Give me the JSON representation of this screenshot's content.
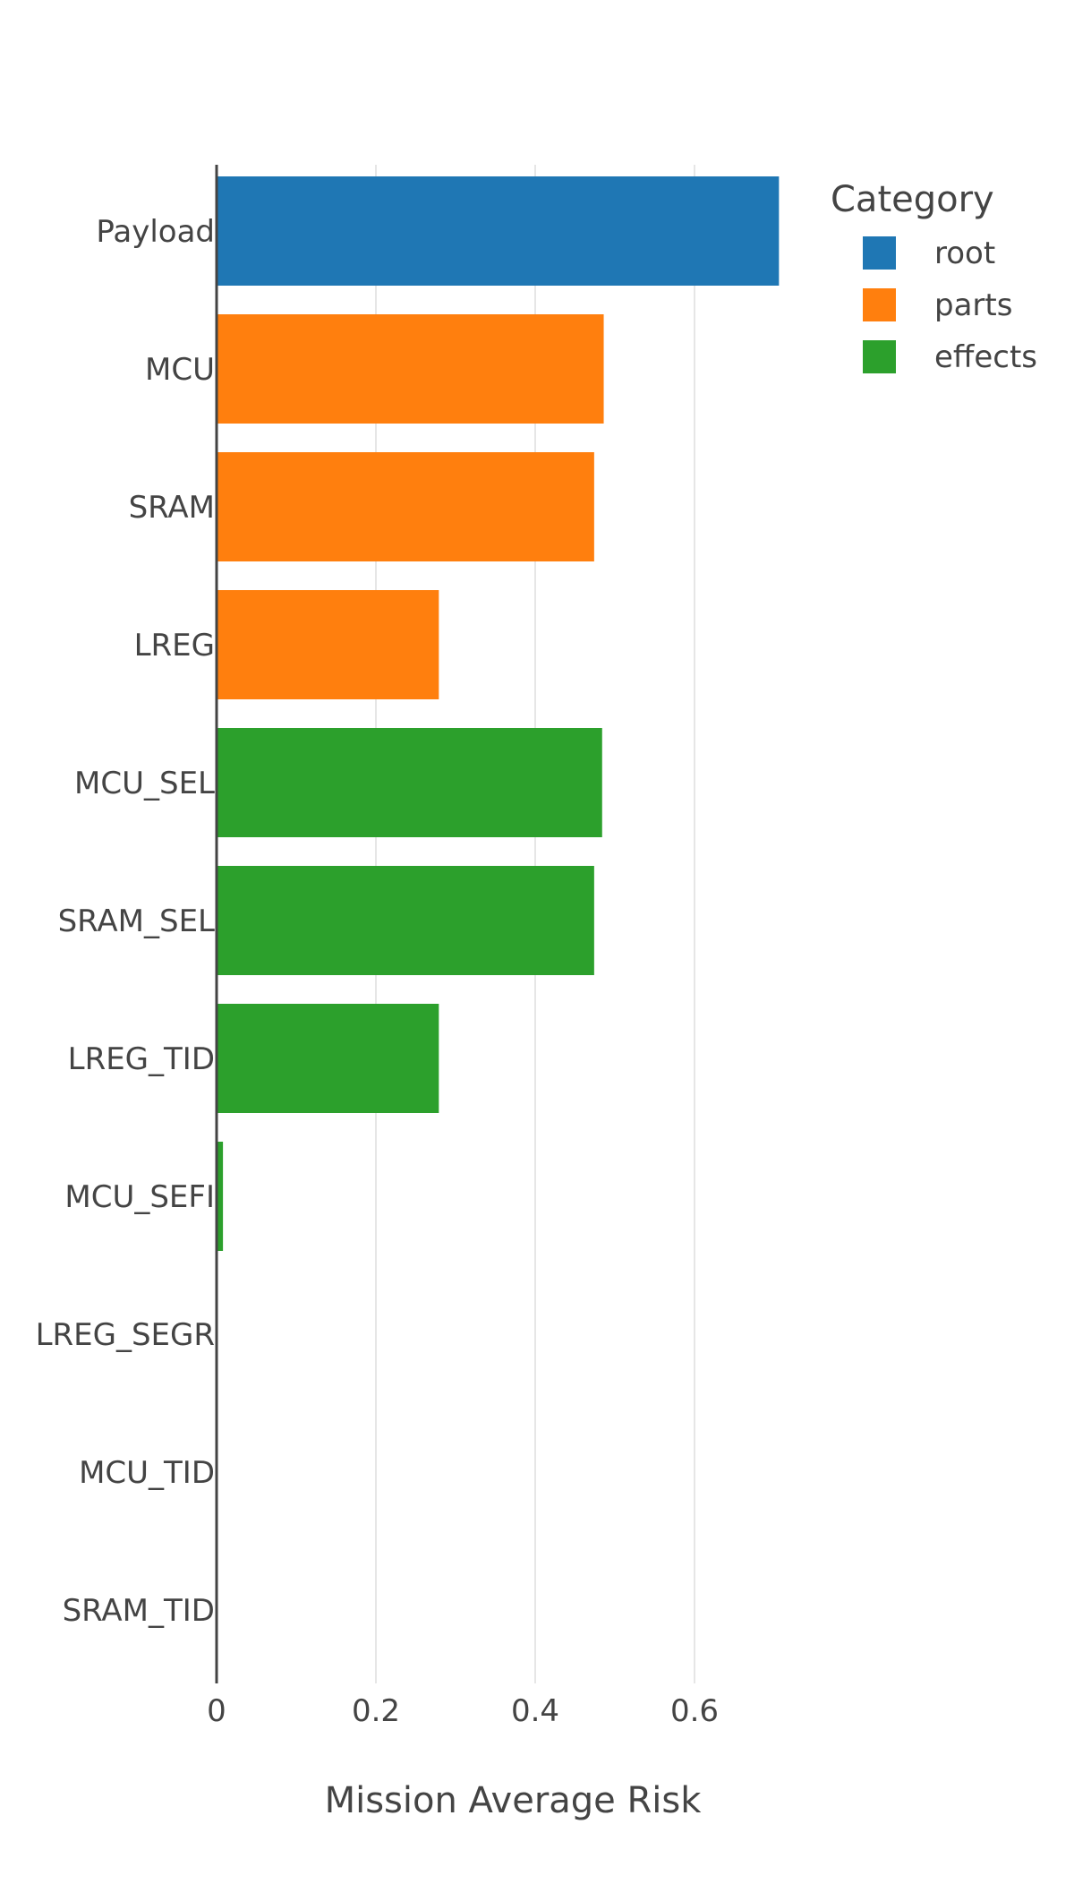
{
  "chart_data": {
    "type": "bar",
    "orientation": "horizontal",
    "title": "",
    "xlabel": "Mission Average Risk",
    "ylabel": "",
    "xlim": [
      0,
      0.72
    ],
    "x_ticks": [
      0,
      0.2,
      0.4,
      0.6
    ],
    "x_tick_labels": [
      "0",
      "0.2",
      "0.4",
      "0.6"
    ],
    "grid": "vertical gridlines on",
    "legend": {
      "title": "Category",
      "placement": "top-right",
      "items": [
        {
          "label": "root",
          "color": "#1f77b4"
        },
        {
          "label": "parts",
          "color": "#ff7f0e"
        },
        {
          "label": "effects",
          "color": "#2ca02c"
        }
      ]
    },
    "categories": [
      "Payload",
      "MCU",
      "SRAM",
      "LREG",
      "MCU_SEL",
      "SRAM_SEL",
      "LREG_TID",
      "MCU_SEFI",
      "LREG_SEGR",
      "MCU_TID",
      "SRAM_TID"
    ],
    "values": [
      0.706,
      0.486,
      0.474,
      0.279,
      0.484,
      0.474,
      0.279,
      0.008,
      0.0015,
      0.0005,
      0.0003
    ],
    "bar_categories": [
      "root",
      "parts",
      "parts",
      "parts",
      "effects",
      "effects",
      "effects",
      "effects",
      "effects",
      "effects",
      "effects"
    ]
  }
}
